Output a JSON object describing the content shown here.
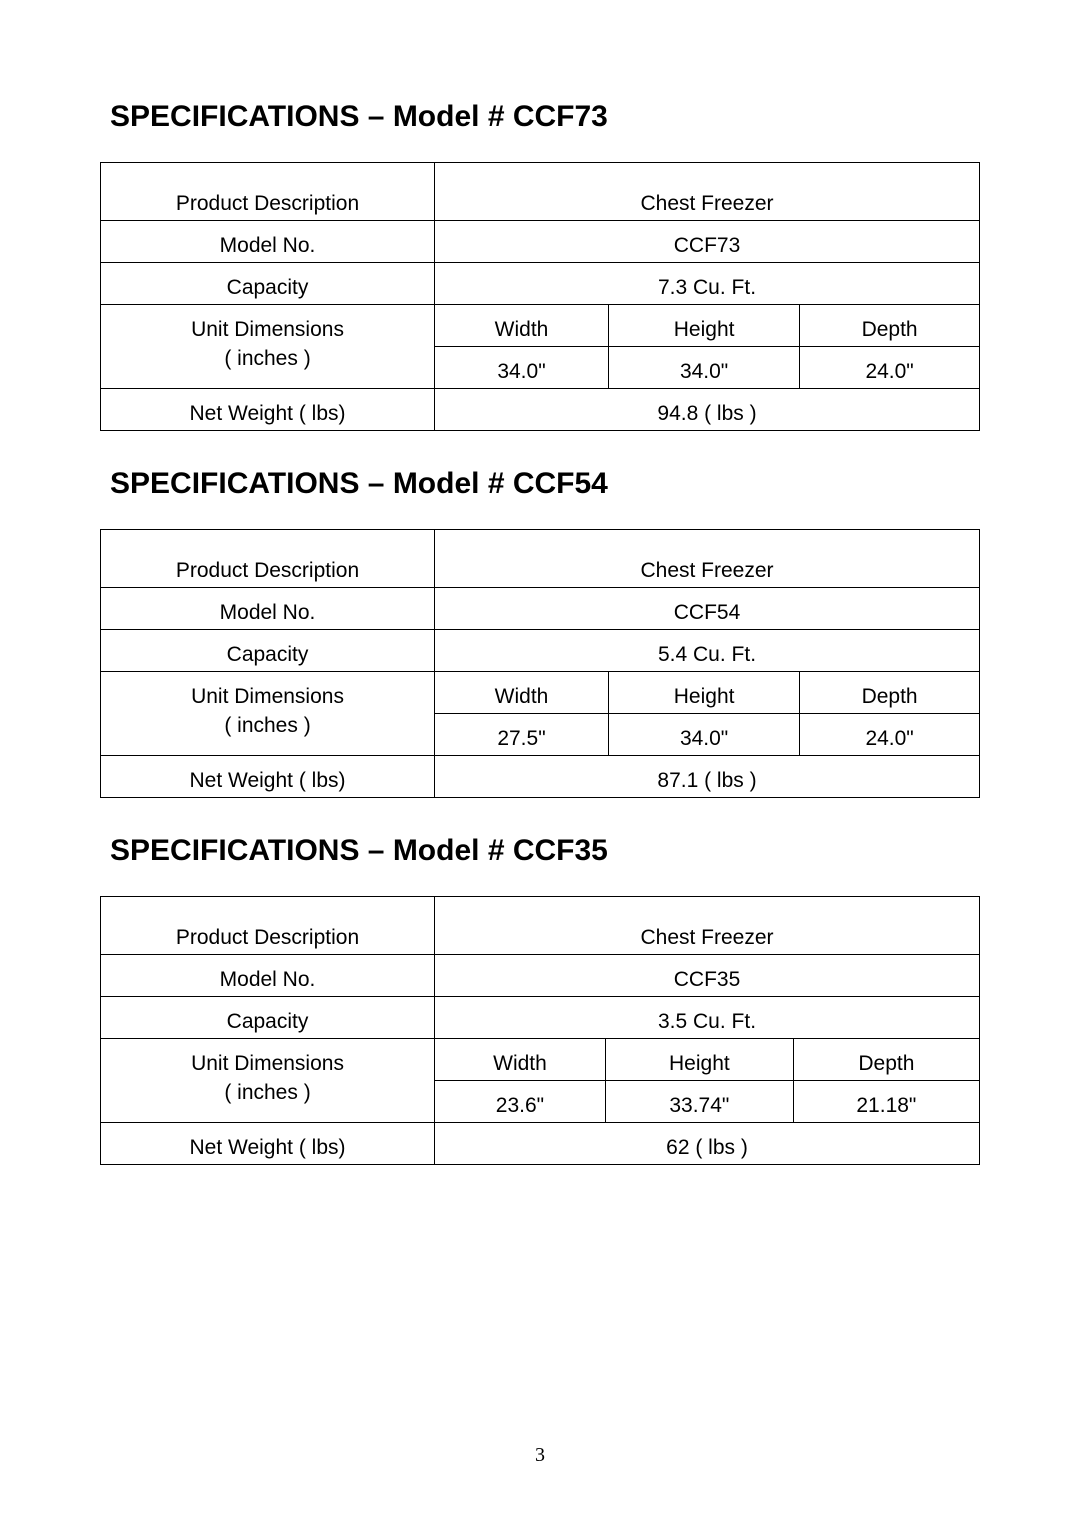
{
  "page_number": "3",
  "labels": {
    "product_description": "Product Description",
    "model_no": "Model No.",
    "capacity": "Capacity",
    "unit_dimensions_line1": "Unit Dimensions",
    "unit_dimensions_line2": "( inches )",
    "width": "Width",
    "height": "Height",
    "depth": "Depth",
    "net_weight": "Net  Weight  ( lbs)"
  },
  "sections": [
    {
      "heading": "SPECIFICATIONS – Model # CCF73",
      "product_description": "Chest Freezer",
      "model_no": "CCF73",
      "capacity": "7.3  Cu. Ft.",
      "width": "34.0\"",
      "height_val": "34.0\"",
      "depth": "24.0\"",
      "net_weight": "94.8 ( lbs )"
    },
    {
      "heading": "SPECIFICATIONS – Model # CCF54",
      "product_description": "Chest Freezer",
      "model_no": "CCF54",
      "capacity": "5.4  Cu. Ft.",
      "width": "27.5\"",
      "height_val": "34.0\"",
      "depth": "24.0\"",
      "net_weight": "87.1 ( lbs )"
    },
    {
      "heading": "SPECIFICATIONS – Model # CCF35",
      "product_description": "Chest Freezer",
      "model_no": "CCF35",
      "capacity": "3.5  Cu. Ft.",
      "width": "23.6\"",
      "height_val": "33.74\"",
      "depth": "21.18\"",
      "net_weight": "62 ( lbs )"
    }
  ]
}
